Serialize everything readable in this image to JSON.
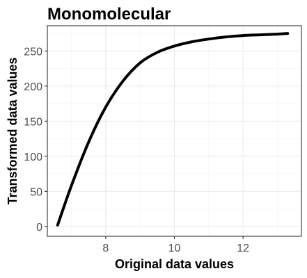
{
  "chart_data": {
    "type": "line",
    "title": "Monomolecular",
    "xlabel": "Original data values",
    "ylabel": "Transformed data values",
    "xlim": [
      6.3,
      13.7
    ],
    "ylim": [
      -14,
      286
    ],
    "x_ticks": [
      8,
      10,
      12
    ],
    "y_ticks": [
      0,
      50,
      100,
      150,
      200,
      250
    ],
    "x_tick_labels": [
      "8",
      "10",
      "12"
    ],
    "y_tick_labels": [
      "0",
      "50",
      "100",
      "150",
      "200",
      "250"
    ],
    "grid": true,
    "legend": "none",
    "series": [
      {
        "color": "#000000",
        "x": [
          6.6,
          7.0,
          7.5,
          8.0,
          8.5,
          9.0,
          9.5,
          10.0,
          10.5,
          11.0,
          11.5,
          12.0,
          12.5,
          13.0,
          13.3
        ],
        "y": [
          2,
          58,
          120,
          170,
          207,
          233,
          248,
          257,
          263,
          267,
          270,
          272,
          273,
          274,
          275
        ]
      }
    ]
  }
}
